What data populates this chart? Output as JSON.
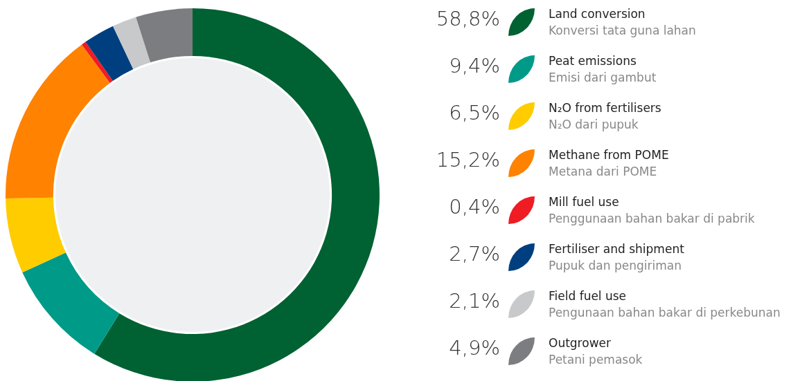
{
  "chart_data": {
    "type": "donut",
    "categories": [
      "Land conversion\nKonversi tata guna lahan",
      "Peat emissions\nEmisi dari gambut",
      "N₂O from fertilisers\nN₂O dari pupuk",
      "Methane from POME\nMetana dari POME",
      "Mill fuel use\nPenggunaan bahan bakar di pabrik",
      "Fertiliser and shipment\nPupuk dan pengiriman",
      "Field fuel use\nPengunaan bahan bakar di perkebunan",
      "Outgrower\nPetani pemasok"
    ],
    "values": [
      58.8,
      9.4,
      6.5,
      15.2,
      0.4,
      2.7,
      2.1,
      4.9
    ],
    "value_labels": [
      "58,8%",
      "9,4%",
      "6,5%",
      "15,2%",
      "0,4%",
      "2,7%",
      "2,1%",
      "4,9%"
    ],
    "colors": [
      "#006133",
      "#009a88",
      "#ffcc00",
      "#ff8200",
      "#ef1c24",
      "#003f7f",
      "#c8c9cb",
      "#7c7d80"
    ],
    "legend": "right"
  }
}
